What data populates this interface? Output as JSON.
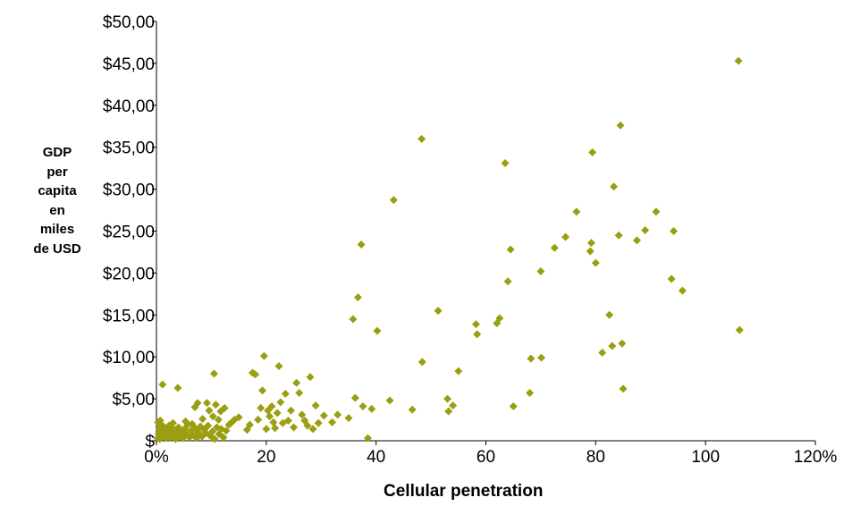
{
  "chart_data": {
    "type": "scatter",
    "title": "",
    "ylabel_lines": [
      "GDP",
      "per",
      "capita",
      "en",
      "miles",
      "de USD"
    ],
    "xlabel": "Cellular penetration",
    "x_ticks": [
      "0%",
      "20",
      "40",
      "60",
      "80",
      "100",
      "120%"
    ],
    "x_tick_values": [
      0,
      20,
      40,
      60,
      80,
      100,
      120
    ],
    "y_ticks": [
      "$",
      "$5,00",
      "$10,00",
      "$15,00",
      "$20,00",
      "$25,00",
      "$30,00",
      "$35,00",
      "$40,00",
      "$45,00",
      "$50,00"
    ],
    "y_tick_values": [
      0,
      5,
      10,
      15,
      20,
      25,
      30,
      35,
      40,
      45,
      50
    ],
    "xlim": [
      0,
      120
    ],
    "ylim": [
      0,
      50
    ],
    "grid": false,
    "marker_color": "#9a9e10",
    "series": [
      {
        "points": [
          [
            0.2,
            0.3
          ],
          [
            0.4,
            0.8
          ],
          [
            0.5,
            1.4
          ],
          [
            0.6,
            0.2
          ],
          [
            0.8,
            1.9
          ],
          [
            1.0,
            1.1
          ],
          [
            1.2,
            0.5
          ],
          [
            1.3,
            1.7
          ],
          [
            1.5,
            0.9
          ],
          [
            1.7,
            0.3
          ],
          [
            1.9,
            1.3
          ],
          [
            2.1,
            0.7
          ],
          [
            2.3,
            1.8
          ],
          [
            2.5,
            0.4
          ],
          [
            2.7,
            1.0
          ],
          [
            2.9,
            1.5
          ],
          [
            3.1,
            0.6
          ],
          [
            3.3,
            1.2
          ],
          [
            3.5,
            0.2
          ],
          [
            3.8,
            0.9
          ],
          [
            4.0,
            1.6
          ],
          [
            4.2,
            0.5
          ],
          [
            4.5,
            1.1
          ],
          [
            4.8,
            0.3
          ],
          [
            5.1,
            1.4
          ],
          [
            5.4,
            0.8
          ],
          [
            5.7,
            1.9
          ],
          [
            6.0,
            0.4
          ],
          [
            6.3,
            1.2
          ],
          [
            6.6,
            0.7
          ],
          [
            7.0,
            1.5
          ],
          [
            7.3,
            0.3
          ],
          [
            7.6,
            1.0
          ],
          [
            8.0,
            1.7
          ],
          [
            8.3,
            0.5
          ],
          [
            8.7,
            1.3
          ],
          [
            9.0,
            0.9
          ],
          [
            9.4,
            1.8
          ],
          [
            9.8,
            0.6
          ],
          [
            10.2,
            1.1
          ],
          [
            10.6,
            0.2
          ],
          [
            11.0,
            1.6
          ],
          [
            11.4,
            0.8
          ],
          [
            11.8,
            1.4
          ],
          [
            12.2,
            0.4
          ],
          [
            12.7,
            1.2
          ],
          [
            13.2,
            1.9
          ],
          [
            13.7,
            2.2
          ],
          [
            14.2,
            2.5
          ],
          [
            0.3,
            2.2
          ],
          [
            0.7,
            2.4
          ],
          [
            1.1,
            6.7
          ],
          [
            3.0,
            2.1
          ],
          [
            3.9,
            6.3
          ],
          [
            5.3,
            2.3
          ],
          [
            6.5,
            2.0
          ],
          [
            7.0,
            4.0
          ],
          [
            7.5,
            4.5
          ],
          [
            8.4,
            2.6
          ],
          [
            9.2,
            4.5
          ],
          [
            9.6,
            3.6
          ],
          [
            10.3,
            2.9
          ],
          [
            10.5,
            8.0
          ],
          [
            10.8,
            4.3
          ],
          [
            11.3,
            2.5
          ],
          [
            11.7,
            3.5
          ],
          [
            12.4,
            3.9
          ],
          [
            15.0,
            2.8
          ],
          [
            16.5,
            1.3
          ],
          [
            17.0,
            1.9
          ],
          [
            17.5,
            8.1
          ],
          [
            18.0,
            7.9
          ],
          [
            18.5,
            2.5
          ],
          [
            19.0,
            3.9
          ],
          [
            19.3,
            6.0
          ],
          [
            19.6,
            10.1
          ],
          [
            20.0,
            1.4
          ],
          [
            20.3,
            3.6
          ],
          [
            20.6,
            2.9
          ],
          [
            21.0,
            4.1
          ],
          [
            21.3,
            2.2
          ],
          [
            21.6,
            1.5
          ],
          [
            22.0,
            3.3
          ],
          [
            22.3,
            8.9
          ],
          [
            22.6,
            4.6
          ],
          [
            23.0,
            2.1
          ],
          [
            23.5,
            5.6
          ],
          [
            24.0,
            2.4
          ],
          [
            24.5,
            3.6
          ],
          [
            25.0,
            1.6
          ],
          [
            25.5,
            6.9
          ],
          [
            26.0,
            5.7
          ],
          [
            26.5,
            3.1
          ],
          [
            27.0,
            2.4
          ],
          [
            27.5,
            1.8
          ],
          [
            28.0,
            7.6
          ],
          [
            28.5,
            1.4
          ],
          [
            29.0,
            4.2
          ],
          [
            29.5,
            2.1
          ],
          [
            30.5,
            3.0
          ],
          [
            32.0,
            2.2
          ],
          [
            33.0,
            3.1
          ],
          [
            35.0,
            2.7
          ],
          [
            35.8,
            14.5
          ],
          [
            36.2,
            5.1
          ],
          [
            36.7,
            17.1
          ],
          [
            37.3,
            23.4
          ],
          [
            37.6,
            4.1
          ],
          [
            38.5,
            0.3
          ],
          [
            39.2,
            3.8
          ],
          [
            40.2,
            13.1
          ],
          [
            42.5,
            4.8
          ],
          [
            43.2,
            28.7
          ],
          [
            46.6,
            3.7
          ],
          [
            48.3,
            36.0
          ],
          [
            48.4,
            9.4
          ],
          [
            51.3,
            15.5
          ],
          [
            53.0,
            5.0
          ],
          [
            53.2,
            3.5
          ],
          [
            54.0,
            4.2
          ],
          [
            55.0,
            8.3
          ],
          [
            58.2,
            13.9
          ],
          [
            58.4,
            12.7
          ],
          [
            62.0,
            14.0
          ],
          [
            62.5,
            14.6
          ],
          [
            63.5,
            33.1
          ],
          [
            64.0,
            19.0
          ],
          [
            64.5,
            22.8
          ],
          [
            65.0,
            4.1
          ],
          [
            68.0,
            5.7
          ],
          [
            68.2,
            9.8
          ],
          [
            70.0,
            20.2
          ],
          [
            70.1,
            9.9
          ],
          [
            72.5,
            23.0
          ],
          [
            74.5,
            24.3
          ],
          [
            76.5,
            27.3
          ],
          [
            79.0,
            22.6
          ],
          [
            79.2,
            23.6
          ],
          [
            79.4,
            34.4
          ],
          [
            80.0,
            21.2
          ],
          [
            81.2,
            10.5
          ],
          [
            82.5,
            15.0
          ],
          [
            83.0,
            11.3
          ],
          [
            83.3,
            30.3
          ],
          [
            84.2,
            24.5
          ],
          [
            84.5,
            37.6
          ],
          [
            84.8,
            11.6
          ],
          [
            85.0,
            6.2
          ],
          [
            87.5,
            23.9
          ],
          [
            89.0,
            25.1
          ],
          [
            91.0,
            27.3
          ],
          [
            93.8,
            19.3
          ],
          [
            94.2,
            25.0
          ],
          [
            95.8,
            17.9
          ],
          [
            106.0,
            45.3
          ],
          [
            106.2,
            13.2
          ]
        ]
      }
    ]
  }
}
